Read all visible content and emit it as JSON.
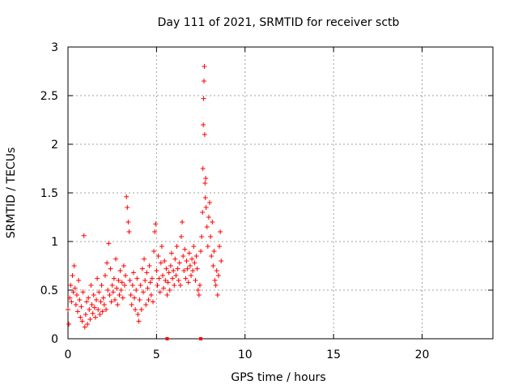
{
  "chart_data": {
    "type": "scatter",
    "title": "Day 111 of 2021, SRMTID for receiver sctb",
    "xlabel": "GPS time / hours",
    "ylabel": "SRMTID / TECUs",
    "xlim": [
      0,
      24
    ],
    "ylim": [
      0,
      3
    ],
    "xticks": [
      0,
      5,
      10,
      15,
      20
    ],
    "yticks": [
      0,
      0.5,
      1,
      1.5,
      2,
      2.5,
      3
    ],
    "xtick_labels": [
      "0",
      "5",
      "10",
      "15",
      "20"
    ],
    "ytick_labels": [
      "0",
      "0.5",
      "1",
      "1.5",
      "2",
      "2.5",
      "3"
    ],
    "grid": true,
    "marker": "plus",
    "colors": {
      "points": "#ff0000",
      "grid": "#a0a0a0",
      "axes": "#000000"
    },
    "series": [
      {
        "name": "SRMTID",
        "points": [
          [
            0.0,
            0.3
          ],
          [
            0.05,
            0.15
          ],
          [
            0.1,
            0.42
          ],
          [
            0.15,
            0.55
          ],
          [
            0.2,
            0.38
          ],
          [
            0.25,
            0.65
          ],
          [
            0.3,
            0.48
          ],
          [
            0.35,
            0.75
          ],
          [
            0.4,
            0.52
          ],
          [
            0.45,
            0.35
          ],
          [
            0.5,
            0.45
          ],
          [
            0.55,
            0.28
          ],
          [
            0.6,
            0.6
          ],
          [
            0.65,
            0.4
          ],
          [
            0.7,
            0.22
          ],
          [
            0.75,
            0.33
          ],
          [
            0.8,
            0.18
          ],
          [
            0.85,
            0.48
          ],
          [
            0.9,
            1.06
          ],
          [
            0.95,
            0.12
          ],
          [
            1.0,
            0.25
          ],
          [
            1.05,
            0.38
          ],
          [
            1.1,
            0.15
          ],
          [
            1.15,
            0.42
          ],
          [
            1.2,
            0.3
          ],
          [
            1.25,
            0.2
          ],
          [
            1.3,
            0.55
          ],
          [
            1.35,
            0.35
          ],
          [
            1.4,
            0.26
          ],
          [
            1.45,
            0.45
          ],
          [
            1.5,
            0.32
          ],
          [
            1.55,
            0.22
          ],
          [
            1.6,
            0.4
          ],
          [
            1.65,
            0.62
          ],
          [
            1.7,
            0.3
          ],
          [
            1.75,
            0.48
          ],
          [
            1.8,
            0.25
          ],
          [
            1.85,
            0.38
          ],
          [
            1.9,
            0.55
          ],
          [
            1.95,
            0.28
          ],
          [
            2.0,
            0.42
          ],
          [
            2.05,
            0.35
          ],
          [
            2.1,
            0.65
          ],
          [
            2.15,
            0.3
          ],
          [
            2.2,
            0.78
          ],
          [
            2.25,
            0.5
          ],
          [
            2.3,
            0.98
          ],
          [
            2.35,
            0.45
          ],
          [
            2.4,
            0.72
          ],
          [
            2.45,
            0.38
          ],
          [
            2.5,
            0.55
          ],
          [
            2.55,
            0.48
          ],
          [
            2.6,
            0.62
          ],
          [
            2.65,
            0.4
          ],
          [
            2.7,
            0.82
          ],
          [
            2.75,
            0.52
          ],
          [
            2.8,
            0.35
          ],
          [
            2.85,
            0.6
          ],
          [
            2.9,
            0.45
          ],
          [
            2.95,
            0.7
          ],
          [
            3.0,
            0.5
          ],
          [
            3.05,
            0.58
          ],
          [
            3.1,
            0.42
          ],
          [
            3.15,
            0.75
          ],
          [
            3.2,
            0.55
          ],
          [
            3.25,
            0.65
          ],
          [
            3.3,
            1.46
          ],
          [
            3.35,
            1.35
          ],
          [
            3.4,
            1.2
          ],
          [
            3.45,
            1.1
          ],
          [
            3.5,
            0.6
          ],
          [
            3.55,
            0.45
          ],
          [
            3.6,
            0.35
          ],
          [
            3.65,
            0.55
          ],
          [
            3.7,
            0.68
          ],
          [
            3.75,
            0.42
          ],
          [
            3.8,
            0.3
          ],
          [
            3.85,
            0.5
          ],
          [
            3.9,
            0.62
          ],
          [
            3.95,
            0.25
          ],
          [
            4.0,
            0.18
          ],
          [
            4.05,
            0.4
          ],
          [
            4.1,
            0.55
          ],
          [
            4.15,
            0.3
          ],
          [
            4.2,
            0.72
          ],
          [
            4.25,
            0.48
          ],
          [
            4.3,
            0.82
          ],
          [
            4.35,
            0.6
          ],
          [
            4.4,
            0.35
          ],
          [
            4.45,
            0.68
          ],
          [
            4.5,
            0.52
          ],
          [
            4.55,
            0.4
          ],
          [
            4.6,
            0.75
          ],
          [
            4.65,
            0.58
          ],
          [
            4.7,
            0.45
          ],
          [
            4.75,
            0.62
          ],
          [
            4.8,
            0.38
          ],
          [
            4.85,
            0.9
          ],
          [
            4.9,
            1.1
          ],
          [
            4.95,
            1.18
          ],
          [
            5.0,
            0.7
          ],
          [
            5.05,
            0.55
          ],
          [
            5.1,
            0.85
          ],
          [
            5.15,
            0.62
          ],
          [
            5.2,
            0.48
          ],
          [
            5.25,
            0.78
          ],
          [
            5.3,
            0.95
          ],
          [
            5.35,
            0.65
          ],
          [
            5.4,
            0.52
          ],
          [
            5.45,
            0.8
          ],
          [
            5.5,
            0.6
          ],
          [
            5.55,
            0.72
          ],
          [
            5.6,
            0.45
          ],
          [
            5.65,
            0.58
          ],
          [
            5.7,
            0.68
          ],
          [
            5.75,
            0.5
          ],
          [
            5.8,
            0.75
          ],
          [
            5.85,
            0.88
          ],
          [
            5.9,
            0.62
          ],
          [
            5.95,
            0.7
          ],
          [
            6.0,
            0.55
          ],
          [
            6.05,
            0.82
          ],
          [
            6.1,
            0.65
          ],
          [
            6.15,
            0.95
          ],
          [
            6.2,
            0.72
          ],
          [
            6.25,
            0.6
          ],
          [
            6.3,
            0.78
          ],
          [
            6.35,
            0.55
          ],
          [
            6.4,
            1.05
          ],
          [
            6.45,
            1.2
          ],
          [
            6.5,
            0.85
          ],
          [
            6.55,
            0.7
          ],
          [
            6.6,
            0.92
          ],
          [
            6.65,
            0.62
          ],
          [
            6.7,
            0.8
          ],
          [
            6.75,
            0.72
          ],
          [
            6.8,
            0.58
          ],
          [
            6.85,
            0.88
          ],
          [
            6.9,
            0.75
          ],
          [
            6.95,
            0.65
          ],
          [
            7.0,
            0.82
          ],
          [
            7.05,
            0.7
          ],
          [
            7.1,
            0.95
          ],
          [
            7.15,
            0.78
          ],
          [
            7.2,
            0.6
          ],
          [
            7.25,
            0.85
          ],
          [
            7.3,
            0.72
          ],
          [
            7.35,
            0.5
          ],
          [
            7.4,
            0.45
          ],
          [
            7.45,
            0.55
          ],
          [
            7.5,
            0.9
          ],
          [
            7.55,
            1.05
          ],
          [
            7.6,
            1.3
          ],
          [
            7.62,
            1.75
          ],
          [
            7.64,
            2.2
          ],
          [
            7.66,
            2.47
          ],
          [
            7.68,
            2.65
          ],
          [
            7.7,
            2.8
          ],
          [
            7.72,
            2.1
          ],
          [
            7.74,
            1.6
          ],
          [
            7.76,
            1.45
          ],
          [
            7.78,
            1.65
          ],
          [
            7.8,
            1.35
          ],
          [
            7.85,
            1.15
          ],
          [
            7.9,
            0.95
          ],
          [
            7.95,
            1.25
          ],
          [
            8.0,
            1.4
          ],
          [
            8.05,
            1.05
          ],
          [
            8.1,
            0.85
          ],
          [
            8.15,
            1.2
          ],
          [
            8.2,
            0.75
          ],
          [
            8.25,
            0.9
          ],
          [
            8.3,
            0.6
          ],
          [
            8.35,
            0.55
          ],
          [
            8.4,
            0.7
          ],
          [
            8.45,
            0.45
          ],
          [
            8.5,
            0.65
          ],
          [
            8.55,
            0.95
          ],
          [
            8.6,
            1.1
          ],
          [
            8.65,
            0.8
          ]
        ]
      }
    ],
    "markers_on_axis": [
      [
        5.6,
        0
      ],
      [
        7.5,
        0
      ]
    ]
  }
}
